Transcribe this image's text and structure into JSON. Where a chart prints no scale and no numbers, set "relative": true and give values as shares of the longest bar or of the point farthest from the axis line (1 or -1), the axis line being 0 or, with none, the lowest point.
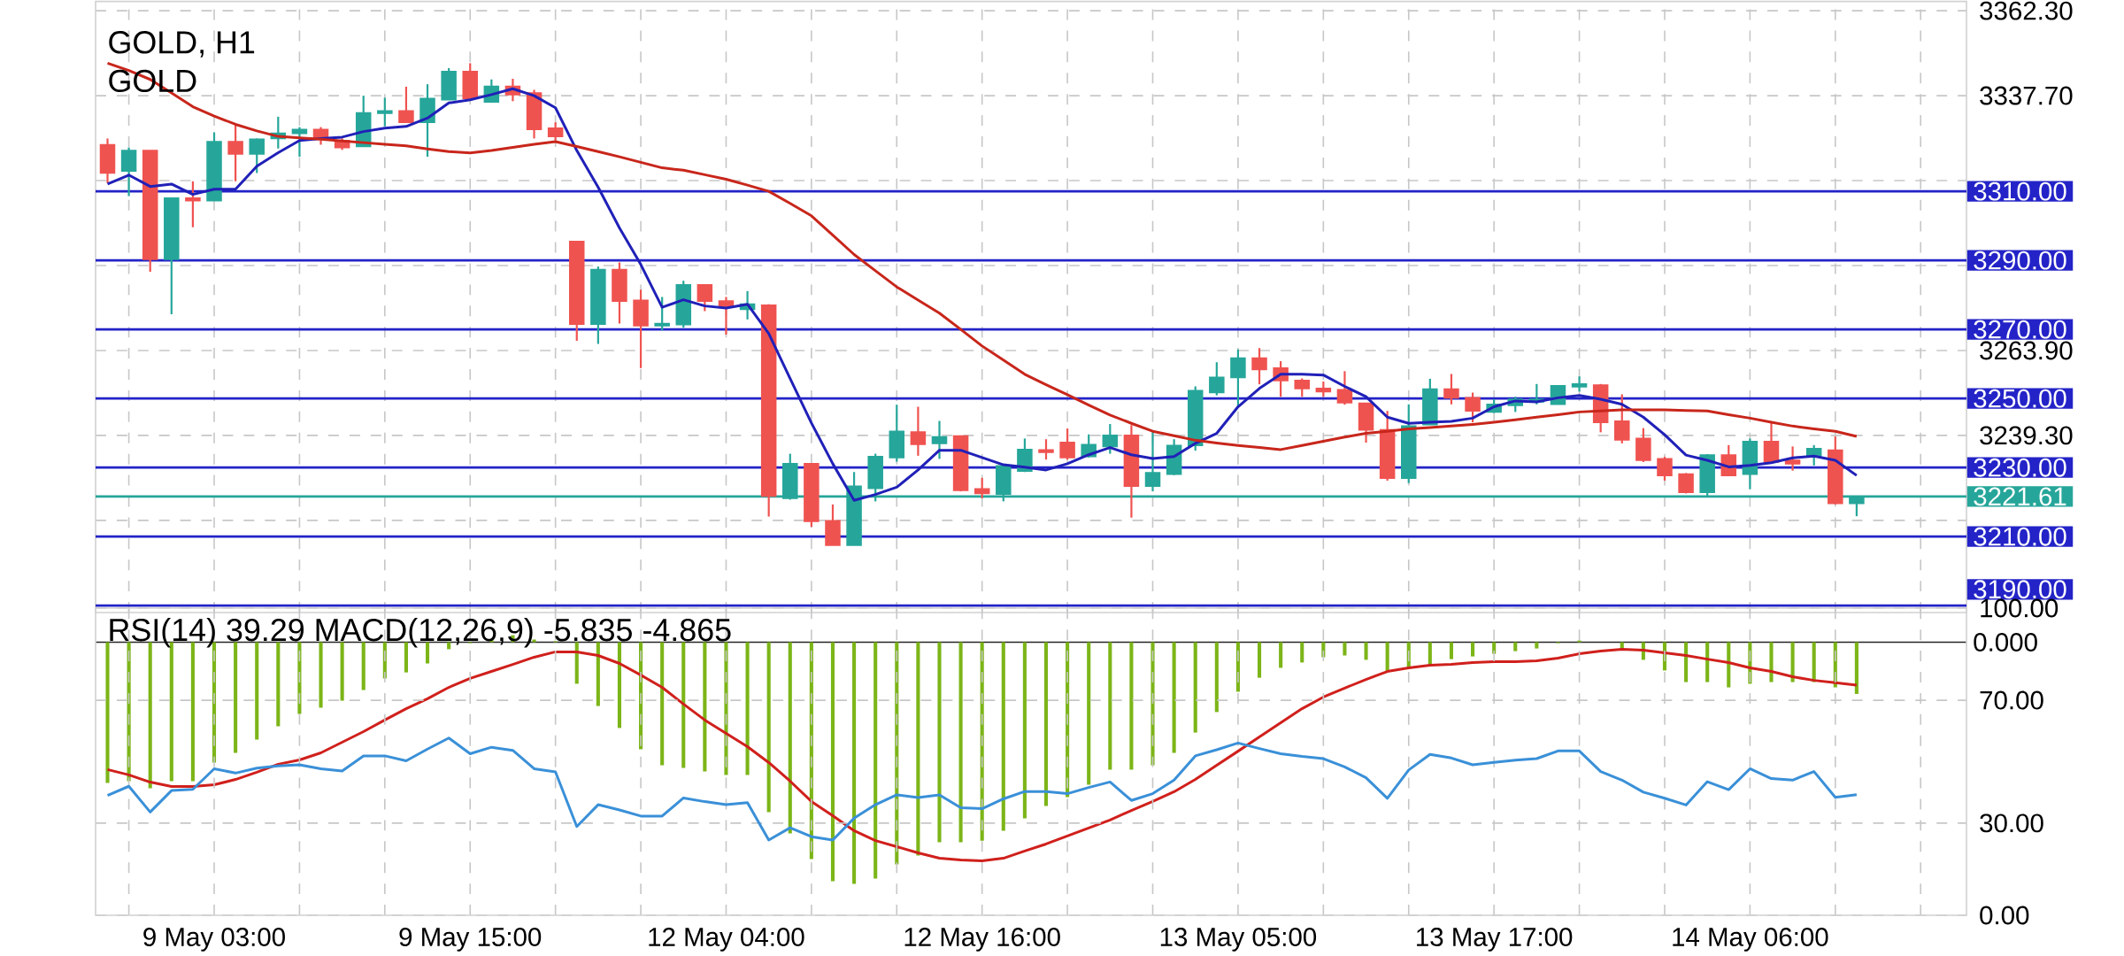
{
  "chart_data": [
    {
      "type": "candlestick",
      "title": "GOLD, H1",
      "subtitle": "GOLD",
      "categories": [
        null,
        null,
        null,
        null,
        null,
        null,
        null,
        null,
        null,
        null,
        null,
        null,
        null,
        null,
        null,
        null,
        null,
        null,
        null,
        null,
        null,
        null,
        null,
        null,
        null,
        null,
        null,
        null,
        null,
        null,
        null,
        null,
        null,
        null,
        null,
        null,
        null,
        null,
        null,
        null,
        null,
        null,
        null,
        null,
        null,
        null,
        null,
        null,
        null,
        null,
        null,
        null,
        null,
        null,
        null,
        null,
        null,
        null,
        null,
        null,
        null,
        null,
        null,
        null,
        null,
        null,
        null,
        null,
        null,
        null,
        null,
        null,
        null,
        null,
        null,
        null,
        null,
        null,
        null,
        null,
        null,
        null,
        null
      ],
      "ylim": [
        3188,
        3365
      ],
      "yticks": [
        {
          "value": 3362.3,
          "label": "3362.30"
        },
        {
          "value": 3337.7,
          "label": "3337.70"
        },
        {
          "value": 3313.1,
          "label": null
        },
        {
          "value": 3288.5,
          "label": null
        },
        {
          "value": 3263.9,
          "label": "3263.90"
        },
        {
          "value": 3239.3,
          "label": "3239.30"
        },
        {
          "value": 3214.7,
          "label": null
        }
      ],
      "grid": true,
      "tick_labels": "y",
      "series": [
        {
          "ohlc": [
            [
              3323.5,
              3325.3,
              3312.4,
              3315.3
            ],
            [
              3315.9,
              3322.7,
              3308.6,
              3321.8
            ],
            [
              3321.8,
              3321.8,
              3286.7,
              3290.3
            ],
            [
              3290.3,
              3308.0,
              3274.4,
              3308.0
            ],
            [
              3308.0,
              3312.9,
              3299.6,
              3307.3
            ],
            [
              3307.3,
              3327.1,
              3307.3,
              3324.4
            ],
            [
              3324.4,
              3329.4,
              3312.9,
              3320.8
            ],
            [
              3320.8,
              3325.3,
              3315.3,
              3325.1
            ],
            [
              3325.3,
              3331.6,
              3322.4,
              3326.8
            ],
            [
              3326.8,
              3328.6,
              3320.0,
              3327.9
            ],
            [
              3327.9,
              3328.6,
              3323.5,
              3325.3
            ],
            [
              3324.7,
              3325.3,
              3322.0,
              3322.7
            ],
            [
              3323.0,
              3337.7,
              3323.0,
              3332.7
            ],
            [
              3332.6,
              3337.1,
              3328.8,
              3333.3
            ],
            [
              3333.3,
              3340.3,
              3330.0,
              3330.0
            ],
            [
              3330.0,
              3341.0,
              3320.0,
              3336.9
            ],
            [
              3336.5,
              3345.7,
              3336.5,
              3344.7
            ],
            [
              3344.7,
              3347.1,
              3336.9,
              3336.9
            ],
            [
              3335.9,
              3342.4,
              3335.9,
              3340.4
            ],
            [
              3340.4,
              3342.6,
              3336.1,
              3338.0
            ],
            [
              3338.5,
              3339.4,
              3325.3,
              3327.9
            ],
            [
              3328.3,
              3330.0,
              3324.7,
              3325.9
            ],
            [
              3295.5,
              3295.5,
              3266.7,
              3271.5
            ],
            [
              3271.5,
              3288.2,
              3265.8,
              3287.3
            ],
            [
              3287.3,
              3289.4,
              3271.7,
              3278.2
            ],
            [
              3278.4,
              3281.5,
              3258.8,
              3271.1
            ],
            [
              3271.1,
              3279.4,
              3269.7,
              3271.7
            ],
            [
              3271.4,
              3284.1,
              3270.5,
              3282.9
            ],
            [
              3282.9,
              3283.1,
              3275.3,
              3278.2
            ],
            [
              3278.2,
              3279.4,
              3268.5,
              3276.4
            ],
            [
              3275.8,
              3281.1,
              3272.9,
              3277.3
            ],
            [
              3277.0,
              3277.3,
              3215.8,
              3221.7
            ],
            [
              3221.1,
              3234.0,
              3220.7,
              3231.1
            ],
            [
              3231.1,
              3231.1,
              3212.8,
              3214.4
            ],
            [
              3214.6,
              3219.3,
              3207.5,
              3207.5
            ],
            [
              3207.5,
              3228.7,
              3207.5,
              3224.6
            ],
            [
              3224.0,
              3234.0,
              3220.2,
              3233.2
            ],
            [
              3232.9,
              3248.2,
              3231.7,
              3240.5
            ],
            [
              3240.3,
              3247.6,
              3233.4,
              3236.7
            ],
            [
              3237.0,
              3243.5,
              3232.5,
              3238.9
            ],
            [
              3239.1,
              3239.3,
              3223.1,
              3223.4
            ],
            [
              3223.8,
              3227.0,
              3221.1,
              3222.5
            ],
            [
              3222.3,
              3230.5,
              3220.2,
              3230.5
            ],
            [
              3229.0,
              3238.4,
              3228.7,
              3235.2
            ],
            [
              3235.1,
              3238.2,
              3232.3,
              3234.4
            ],
            [
              3237.3,
              3241.3,
              3232.3,
              3232.9
            ],
            [
              3233.2,
              3239.6,
              3232.9,
              3236.6
            ],
            [
              3236.1,
              3242.6,
              3234.0,
              3239.3
            ],
            [
              3239.3,
              3242.3,
              3215.5,
              3224.6
            ],
            [
              3224.6,
              3240.3,
              3223.1,
              3228.5
            ],
            [
              3228.1,
              3238.2,
              3227.8,
              3236.4
            ],
            [
              3236.4,
              3253.5,
              3234.9,
              3252.3
            ],
            [
              3251.7,
              3260.5,
              3250.9,
              3256.1
            ],
            [
              3256.1,
              3264.2,
              3247.6,
              3261.7
            ],
            [
              3261.7,
              3264.6,
              3254.1,
              3258.4
            ],
            [
              3258.8,
              3260.8,
              3250.5,
              3255.2
            ],
            [
              3255.2,
              3255.8,
              3250.5,
              3252.9
            ],
            [
              3252.9,
              3254.9,
              3250.5,
              3252.0
            ],
            [
              3252.5,
              3257.9,
              3248.2,
              3248.8
            ],
            [
              3248.6,
              3248.6,
              3237.2,
              3240.9
            ],
            [
              3240.9,
              3246.4,
              3226.2,
              3226.9
            ],
            [
              3226.9,
              3248.3,
              3225.5,
              3242.0
            ],
            [
              3242.4,
              3255.7,
              3242.4,
              3252.7
            ],
            [
              3252.7,
              3257.1,
              3248.3,
              3250.2
            ],
            [
              3250.2,
              3251.7,
              3243.1,
              3246.4
            ],
            [
              3246.1,
              3249.8,
              3245.8,
              3248.3
            ],
            [
              3248.0,
              3250.5,
              3246.1,
              3249.8
            ],
            [
              3249.0,
              3254.2,
              3248.3,
              3249.8
            ],
            [
              3248.3,
              3253.7,
              3248.3,
              3253.7
            ],
            [
              3253.4,
              3256.4,
              3252.0,
              3254.2
            ],
            [
              3253.9,
              3254.2,
              3240.2,
              3243.1
            ],
            [
              3243.4,
              3251.2,
              3237.0,
              3238.0
            ],
            [
              3238.4,
              3241.4,
              3231.6,
              3232.1
            ],
            [
              3232.5,
              3233.1,
              3226.2,
              3227.7
            ],
            [
              3228.1,
              3228.4,
              3222.5,
              3222.8
            ],
            [
              3222.8,
              3233.9,
              3221.8,
              3233.6
            ],
            [
              3233.6,
              3236.5,
              3227.7,
              3227.7
            ],
            [
              3228.1,
              3238.4,
              3223.7,
              3237.5
            ],
            [
              3237.5,
              3243.4,
              3231.3,
              3231.6
            ],
            [
              3232.1,
              3236.1,
              3229.1,
              3231.1
            ],
            [
              3233.1,
              3236.5,
              3230.6,
              3235.5
            ],
            [
              3235.0,
              3239.0,
              3219.3,
              3219.6
            ],
            [
              3219.6,
              3221.7,
              3215.9,
              3221.6
            ]
          ],
          "colors": [
            "#ef5350",
            "#26a69a",
            "#ef5350",
            "#26a69a",
            "#ef5350",
            "#26a69a",
            "#ef5350",
            "#26a69a",
            "#26a69a",
            "#26a69a",
            "#ef5350",
            "#ef5350",
            "#26a69a",
            "#26a69a",
            "#ef5350",
            "#26a69a",
            "#26a69a",
            "#ef5350",
            "#26a69a",
            "#ef5350",
            "#ef5350",
            "#ef5350",
            "#ef5350",
            "#26a69a",
            "#ef5350",
            "#ef5350",
            "#26a69a",
            "#26a69a",
            "#ef5350",
            "#ef5350",
            "#26a69a",
            "#ef5350",
            "#26a69a",
            "#ef5350",
            "#ef5350",
            "#26a69a",
            "#26a69a",
            "#26a69a",
            "#ef5350",
            "#26a69a",
            "#ef5350",
            "#ef5350",
            "#26a69a",
            "#26a69a",
            "#ef5350",
            "#ef5350",
            "#26a69a",
            "#26a69a",
            "#ef5350",
            "#26a69a",
            "#26a69a",
            "#26a69a",
            "#26a69a",
            "#26a69a",
            "#ef5350",
            "#ef5350",
            "#ef5350",
            "#ef5350",
            "#ef5350",
            "#ef5350",
            "#ef5350",
            "#26a69a",
            "#26a69a",
            "#ef5350",
            "#ef5350",
            "#26a69a",
            "#26a69a",
            "#26a69a",
            "#26a69a",
            "#26a69a",
            "#ef5350",
            "#ef5350",
            "#ef5350",
            "#ef5350",
            "#ef5350",
            "#26a69a",
            "#ef5350",
            "#26a69a",
            "#ef5350",
            "#ef5350",
            "#26a69a",
            "#ef5350",
            "#26a69a"
          ]
        },
        {
          "type": "line",
          "color": "#2020b8",
          "values": [
            3312.1,
            3314.7,
            3311.4,
            3312.1,
            3309.1,
            3310.6,
            3310.6,
            3317.3,
            3321.2,
            3324.7,
            3325.3,
            3325.7,
            3327.3,
            3328.3,
            3328.8,
            3331.2,
            3335.6,
            3336.5,
            3338.0,
            3339.7,
            3337.7,
            3334.2,
            3321.8,
            3311.2,
            3299.4,
            3288.8,
            3276.4,
            3278.6,
            3276.8,
            3276.2,
            3277.3,
            3268.8,
            3255.8,
            3242.9,
            3231.1,
            3220.5,
            3222.2,
            3224.3,
            3229.3,
            3235.0,
            3235.0,
            3232.9,
            3230.8,
            3230.1,
            3229.3,
            3231.1,
            3233.7,
            3235.8,
            3233.7,
            3232.6,
            3233.2,
            3237.0,
            3239.9,
            3247.6,
            3252.9,
            3257.0,
            3257.0,
            3256.8,
            3253.5,
            3250.5,
            3244.6,
            3242.8,
            3243.1,
            3243.4,
            3244.3,
            3247.6,
            3249.3,
            3249.0,
            3250.2,
            3250.9,
            3249.8,
            3248.3,
            3244.6,
            3239.5,
            3233.6,
            3232.1,
            3230.2,
            3230.6,
            3231.4,
            3232.8,
            3233.3,
            3232.1,
            3227.7
          ]
        },
        {
          "type": "line",
          "color": "#c8261b",
          "values": [
            3347.1,
            3345.0,
            3342.4,
            3338.5,
            3334.5,
            3331.8,
            3329.4,
            3327.5,
            3325.9,
            3325.5,
            3325.1,
            3324.6,
            3324.1,
            3323.6,
            3323.2,
            3322.3,
            3321.5,
            3321.1,
            3321.8,
            3322.7,
            3323.6,
            3324.4,
            3323.0,
            3321.5,
            3320.0,
            3318.4,
            3316.8,
            3316.1,
            3314.8,
            3313.5,
            3311.8,
            3310.0,
            3306.5,
            3302.9,
            3297.3,
            3291.7,
            3287.0,
            3282.3,
            3278.5,
            3274.7,
            3270.0,
            3265.2,
            3261.1,
            3257.0,
            3254.0,
            3251.1,
            3248.1,
            3245.2,
            3242.8,
            3240.5,
            3239.2,
            3237.9,
            3237.1,
            3236.4,
            3235.8,
            3235.2,
            3236.4,
            3237.6,
            3238.8,
            3239.9,
            3240.5,
            3241.2,
            3241.6,
            3242.0,
            3242.5,
            3243.1,
            3243.8,
            3244.6,
            3245.3,
            3246.1,
            3246.4,
            3246.7,
            3246.7,
            3246.7,
            3246.5,
            3246.4,
            3245.3,
            3244.3,
            3243.1,
            3242.0,
            3241.2,
            3240.5,
            3239.0
          ]
        }
      ],
      "ref_lines": [
        {
          "axis": "y",
          "value": 3310,
          "label": "3310.00",
          "color": "#2323c8"
        },
        {
          "axis": "y",
          "value": 3290,
          "label": "3290.00",
          "color": "#2323c8"
        },
        {
          "axis": "y",
          "value": 3270,
          "label": "3270.00",
          "color": "#2323c8"
        },
        {
          "axis": "y",
          "value": 3250,
          "label": "3250.00",
          "color": "#2323c8"
        },
        {
          "axis": "y",
          "value": 3230,
          "label": "3230.00",
          "color": "#2323c8"
        },
        {
          "axis": "y",
          "value": 3221.61,
          "label": "3221.61",
          "color": "#26a69a"
        },
        {
          "axis": "y",
          "value": 3210,
          "label": "3210.00",
          "color": "#2323c8"
        },
        {
          "axis": "y",
          "value": 3190,
          "label": "3190.00",
          "color": "#2323c8"
        }
      ]
    },
    {
      "type": "line",
      "title": "RSI(14) 39.29 MACD(12,26,9) -5.835 -4.865",
      "series": [
        {
          "color": "#3a90d8",
          "values": [
            39.0,
            42.0,
            33.6,
            40.6,
            41.0,
            47.7,
            46.3,
            47.9,
            48.6,
            49.0,
            47.7,
            47.0,
            51.9,
            51.9,
            50.3,
            54.1,
            57.7,
            52.6,
            54.7,
            53.7,
            47.7,
            46.7,
            28.9,
            36.0,
            34.3,
            32.3,
            32.3,
            38.2,
            37.0,
            36.0,
            36.7,
            24.5,
            28.5,
            25.6,
            24.5,
            31.6,
            36.0,
            39.2,
            38.3,
            39.2,
            35.0,
            34.7,
            37.9,
            40.3,
            40.3,
            39.6,
            41.6,
            43.4,
            37.4,
            39.6,
            44.0,
            51.9,
            53.9,
            56.1,
            54.3,
            52.6,
            51.7,
            51.0,
            48.3,
            44.8,
            38.1,
            47.3,
            52.4,
            51.2,
            49.0,
            49.8,
            50.5,
            51.0,
            53.5,
            53.5,
            46.8,
            44.0,
            40.1,
            38.1,
            35.9,
            43.5,
            40.9,
            47.7,
            44.5,
            44.0,
            46.8,
            38.4,
            39.29
          ]
        }
      ],
      "categories": [
        null,
        null,
        null,
        null,
        null,
        "9 May 03:00",
        null,
        null,
        null,
        null,
        null,
        null,
        null,
        null,
        null,
        null,
        null,
        "9 May 15:00",
        null,
        null,
        null,
        null,
        null,
        null,
        null,
        null,
        null,
        null,
        null,
        "12 May 04:00",
        null,
        null,
        null,
        null,
        null,
        null,
        null,
        null,
        null,
        null,
        null,
        "12 May 16:00",
        null,
        null,
        null,
        null,
        null,
        null,
        null,
        null,
        null,
        null,
        null,
        "13 May 05:00",
        null,
        null,
        null,
        null,
        null,
        null,
        null,
        null,
        null,
        null,
        null,
        "13 May 17:00",
        null,
        null,
        null,
        null,
        null,
        null,
        null,
        null,
        null,
        null,
        null,
        "14 May 06:00",
        null,
        null,
        null,
        null,
        null
      ],
      "ylim": [
        0,
        100
      ],
      "yticks": [
        {
          "value": 0,
          "label": "0.00"
        },
        {
          "value": 30,
          "label": "30.00"
        },
        {
          "value": 70,
          "label": "70.00"
        },
        {
          "value": 100,
          "label": "100.00"
        }
      ],
      "grid": true
    },
    {
      "type": "bar",
      "relative": true,
      "tick_labels": false,
      "annotations": [
        "0.000"
      ],
      "categories": [
        null,
        null,
        null,
        null,
        null,
        null,
        null,
        null,
        null,
        null,
        null,
        null,
        null,
        null,
        null,
        null,
        null,
        null,
        null,
        null,
        null,
        null,
        null,
        null,
        null,
        null,
        null,
        null,
        null,
        null,
        null,
        null,
        null,
        null,
        null,
        null,
        null,
        null,
        null,
        null,
        null,
        null,
        null,
        null,
        null,
        null,
        null,
        null,
        null,
        null,
        null,
        null,
        null,
        null,
        null,
        null,
        null,
        null,
        null,
        null,
        null,
        null,
        null,
        null,
        null,
        null,
        null,
        null,
        null,
        null,
        null,
        null,
        null,
        null,
        null,
        null,
        null,
        null,
        null,
        null,
        null,
        null,
        null
      ],
      "series": [
        {
          "color": "#7cb518",
          "values": [
            -0.582,
            -0.575,
            -0.604,
            -0.575,
            -0.575,
            -0.498,
            -0.458,
            -0.403,
            -0.348,
            -0.297,
            -0.271,
            -0.242,
            -0.198,
            -0.15,
            -0.125,
            -0.088,
            -0.029,
            -0.004,
            0.011,
            0.029,
            0.011,
            0.004,
            -0.172,
            -0.264,
            -0.355,
            -0.443,
            -0.509,
            -0.52,
            -0.535,
            -0.549,
            -0.549,
            -0.703,
            -0.791,
            -0.897,
            -0.989,
            -1,
            -0.978,
            -0.919,
            -0.883,
            -0.828,
            -0.828,
            -0.821,
            -0.78,
            -0.729,
            -0.678,
            -0.641,
            -0.59,
            -0.527,
            -0.527,
            -0.509,
            -0.458,
            -0.374,
            -0.289,
            -0.205,
            -0.147,
            -0.106,
            -0.084,
            -0.062,
            -0.055,
            -0.073,
            -0.121,
            -0.11,
            -0.092,
            -0.07,
            -0.059,
            -0.048,
            -0.037,
            -0.026,
            -0.004,
            0.007,
            null,
            -0.029,
            -0.073,
            -0.117,
            -0.165,
            -0.165,
            -0.187,
            -0.172,
            -0.165,
            -0.165,
            -0.165,
            -0.187,
            -0.214
          ]
        },
        {
          "type": "line",
          "color": "#d0201c",
          "values": [
            -0.527,
            -0.549,
            -0.579,
            -0.597,
            -0.597,
            -0.59,
            -0.568,
            -0.538,
            -0.505,
            -0.487,
            -0.458,
            -0.414,
            -0.37,
            -0.322,
            -0.275,
            -0.234,
            -0.187,
            -0.15,
            -0.121,
            -0.092,
            -0.062,
            -0.04,
            -0.04,
            -0.055,
            -0.088,
            -0.136,
            -0.187,
            -0.256,
            -0.322,
            -0.377,
            -0.432,
            -0.498,
            -0.575,
            -0.659,
            -0.718,
            -0.78,
            -0.821,
            -0.846,
            -0.872,
            -0.894,
            -0.901,
            -0.905,
            -0.894,
            -0.864,
            -0.835,
            -0.802,
            -0.769,
            -0.736,
            -0.696,
            -0.659,
            -0.619,
            -0.568,
            -0.509,
            -0.451,
            -0.392,
            -0.333,
            -0.275,
            -0.227,
            -0.19,
            -0.154,
            -0.121,
            -0.106,
            -0.095,
            -0.092,
            -0.084,
            -0.081,
            -0.081,
            -0.077,
            -0.066,
            -0.048,
            -0.037,
            -0.029,
            -0.033,
            -0.044,
            -0.055,
            -0.07,
            -0.084,
            -0.106,
            -0.121,
            -0.143,
            -0.158,
            -0.168,
            -0.178
          ]
        }
      ]
    }
  ]
}
